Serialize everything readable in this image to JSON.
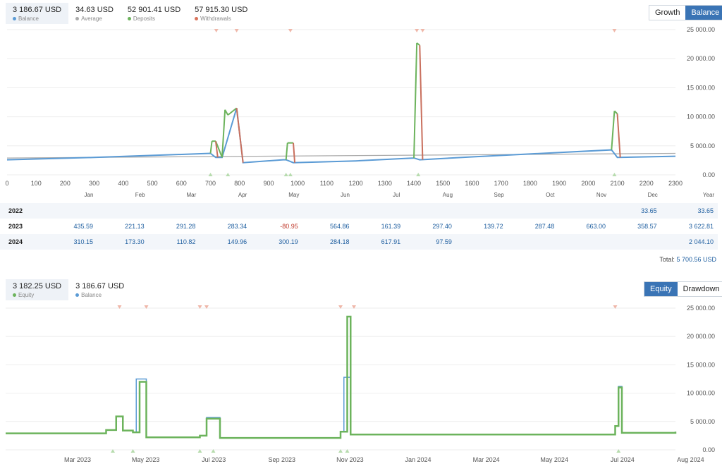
{
  "top_legend": [
    {
      "value": "3 186.67 USD",
      "label": "Balance",
      "color": "#5b9bd5",
      "selected": true
    },
    {
      "value": "34.63 USD",
      "label": "Average",
      "color": "#aaaaaa",
      "selected": false
    },
    {
      "value": "52 901.41 USD",
      "label": "Deposits",
      "color": "#6cb35c",
      "selected": false
    },
    {
      "value": "57 915.30 USD",
      "label": "Withdrawals",
      "color": "#d9735b",
      "selected": false
    }
  ],
  "top_toggle": {
    "growth": "Growth",
    "balance": "Balance"
  },
  "bottom_legend": [
    {
      "value": "3 182.25 USD",
      "label": "Equity",
      "color": "#6cb35c",
      "selected": true
    },
    {
      "value": "3 186.67 USD",
      "label": "Balance",
      "color": "#5b9bd5",
      "selected": false
    }
  ],
  "bottom_toggle": {
    "equity": "Equity",
    "drawdown": "Drawdown"
  },
  "colors": {
    "balance": "#5b9bd5",
    "deposit": "#6cb35c",
    "withdrawal": "#c9705e",
    "average": "#aaaaaa",
    "equity": "#6cb35c"
  },
  "chart_data": [
    {
      "type": "line",
      "x_ticks": [
        0,
        100,
        200,
        300,
        400,
        500,
        600,
        700,
        800,
        900,
        1000,
        1100,
        1200,
        1300,
        1400,
        1500,
        1600,
        1700,
        1800,
        1900,
        2000,
        2100,
        2200,
        2300
      ],
      "y_ticks": [
        "0.00",
        "5 000.00",
        "10 000.00",
        "15 000.00",
        "20 000.00",
        "25 000.00"
      ],
      "xlim": [
        0,
        2300
      ],
      "ylim": [
        0,
        25000
      ],
      "month_labels": [
        "Jan",
        "Feb",
        "Mar",
        "Apr",
        "May",
        "Jun",
        "Jul",
        "Aug",
        "Sep",
        "Oct",
        "Nov",
        "Dec",
        "Year"
      ],
      "balance": [
        [
          0,
          2600
        ],
        [
          300,
          3000
        ],
        [
          700,
          3700
        ],
        [
          718,
          3000
        ],
        [
          740,
          3000
        ],
        [
          790,
          11500
        ],
        [
          812,
          2100
        ],
        [
          950,
          2600
        ],
        [
          960,
          2600
        ],
        [
          985,
          2100
        ],
        [
          1200,
          2400
        ],
        [
          1400,
          2900
        ],
        [
          1420,
          2600
        ],
        [
          1600,
          3100
        ],
        [
          2080,
          4300
        ],
        [
          2100,
          3000
        ],
        [
          2300,
          3200
        ]
      ],
      "deposits": [
        [
          700,
          3700
        ],
        [
          705,
          5800
        ],
        [
          718,
          5800
        ],
        [
          740,
          3000
        ],
        [
          750,
          11200
        ],
        [
          760,
          10300
        ],
        [
          790,
          11500
        ],
        [
          960,
          2600
        ],
        [
          965,
          5500
        ],
        [
          985,
          5500
        ],
        [
          1400,
          2900
        ],
        [
          1410,
          22700
        ],
        [
          1420,
          22300
        ],
        [
          2080,
          4300
        ],
        [
          2090,
          11000
        ],
        [
          2100,
          10500
        ]
      ],
      "withdrawals": [
        [
          718,
          5800
        ],
        [
          725,
          3000
        ],
        [
          790,
          11500
        ],
        [
          812,
          2100
        ],
        [
          985,
          5500
        ],
        [
          990,
          2100
        ],
        [
          1420,
          22300
        ],
        [
          1430,
          2600
        ],
        [
          2100,
          10500
        ],
        [
          2110,
          3000
        ]
      ],
      "average": [
        [
          0,
          2900
        ],
        [
          2300,
          3700
        ]
      ],
      "deposit_markers": [
        700,
        760,
        960,
        975,
        1415,
        2090
      ],
      "withdrawal_markers": [
        720,
        790,
        975,
        1410,
        1430,
        2090
      ]
    },
    {
      "type": "table",
      "columns": [
        "Jan",
        "Feb",
        "Mar",
        "Apr",
        "May",
        "Jun",
        "Jul",
        "Aug",
        "Sep",
        "Oct",
        "Nov",
        "Dec",
        "Year"
      ],
      "rows": [
        {
          "year": "2022",
          "values": [
            "",
            "",
            "",
            "",
            "",
            "",
            "",
            "",
            "",
            "",
            "",
            "33.65",
            "33.65"
          ]
        },
        {
          "year": "2023",
          "values": [
            "435.59",
            "221.13",
            "291.28",
            "283.34",
            "-80.95",
            "564.86",
            "161.39",
            "297.40",
            "139.72",
            "287.48",
            "663.00",
            "358.57",
            "3 622.81"
          ]
        },
        {
          "year": "2024",
          "values": [
            "310.15",
            "173.30",
            "110.82",
            "149.96",
            "300.19",
            "284.18",
            "617.91",
            "97.59",
            "",
            "",
            "",
            "",
            "2 044.10"
          ]
        }
      ],
      "total_label": "Total:",
      "total_value": "5 700.56 USD"
    },
    {
      "type": "line",
      "x_labels": [
        "Mar 2023",
        "May 2023",
        "Jul 2023",
        "Sep 2023",
        "Nov 2023",
        "Jan 2024",
        "Mar 2024",
        "May 2024",
        "Jul 2024",
        "Aug 2024"
      ],
      "y_ticks": [
        "0.00",
        "5 000.00",
        "10 000.00",
        "15 000.00",
        "20 000.00",
        "25 000.00"
      ],
      "ylim": [
        0,
        25000
      ],
      "equity": [
        [
          0,
          2900
        ],
        [
          0.15,
          3500
        ],
        [
          0.165,
          5900
        ],
        [
          0.175,
          3400
        ],
        [
          0.19,
          3100
        ],
        [
          0.2,
          12000
        ],
        [
          0.21,
          2200
        ],
        [
          0.29,
          2500
        ],
        [
          0.3,
          5500
        ],
        [
          0.32,
          2100
        ],
        [
          0.5,
          3200
        ],
        [
          0.51,
          23500
        ],
        [
          0.515,
          2700
        ],
        [
          0.91,
          4200
        ],
        [
          0.915,
          11000
        ],
        [
          0.92,
          3000
        ],
        [
          1.0,
          3200
        ]
      ],
      "balance": [
        [
          0,
          2900
        ],
        [
          0.15,
          3500
        ],
        [
          0.165,
          5900
        ],
        [
          0.175,
          3400
        ],
        [
          0.19,
          3100
        ],
        [
          0.195,
          12500
        ],
        [
          0.21,
          2200
        ],
        [
          0.29,
          2500
        ],
        [
          0.3,
          5700
        ],
        [
          0.32,
          2100
        ],
        [
          0.5,
          3200
        ],
        [
          0.505,
          12800
        ],
        [
          0.515,
          2700
        ],
        [
          0.91,
          4200
        ],
        [
          0.915,
          11200
        ],
        [
          0.92,
          3000
        ],
        [
          1.0,
          3200
        ]
      ],
      "deposit_markers": [
        0.16,
        0.19,
        0.29,
        0.31,
        0.5,
        0.51,
        0.915
      ],
      "withdrawal_markers": [
        0.17,
        0.21,
        0.29,
        0.3,
        0.5,
        0.52,
        0.91
      ]
    }
  ]
}
